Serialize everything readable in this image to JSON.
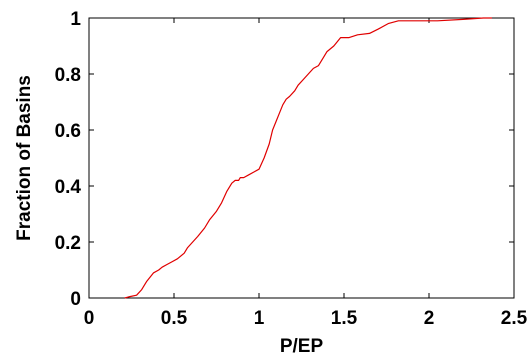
{
  "chart_data": {
    "type": "line",
    "title": "",
    "xlabel": "P/EP",
    "ylabel": "Fraction of Basins",
    "xlim": [
      0,
      2.5
    ],
    "ylim": [
      0,
      1
    ],
    "x_ticks": [
      0,
      0.5,
      1,
      1.5,
      2,
      2.5
    ],
    "x_tick_labels": [
      "0",
      "0.5",
      "1",
      "1.5",
      "2",
      "2.5"
    ],
    "y_ticks": [
      0,
      0.2,
      0.4,
      0.6,
      0.8,
      1
    ],
    "y_tick_labels": [
      "0",
      "0.2",
      "0.4",
      "0.6",
      "0.8",
      "1"
    ],
    "grid": false,
    "legend": "none",
    "series": [
      {
        "color": "#e00000",
        "x": [
          0.21,
          0.24,
          0.28,
          0.31,
          0.34,
          0.38,
          0.41,
          0.43,
          0.46,
          0.49,
          0.52,
          0.56,
          0.58,
          0.61,
          0.64,
          0.68,
          0.71,
          0.75,
          0.78,
          0.81,
          0.84,
          0.86,
          0.88,
          0.89,
          0.91,
          0.94,
          0.97,
          1.0,
          1.03,
          1.06,
          1.08,
          1.1,
          1.12,
          1.14,
          1.16,
          1.18,
          1.21,
          1.23,
          1.26,
          1.29,
          1.32,
          1.35,
          1.38,
          1.4,
          1.44,
          1.48,
          1.53,
          1.58,
          1.65,
          1.7,
          1.76,
          1.82,
          1.88,
          2.05,
          2.2,
          2.32,
          2.37
        ],
        "y": [
          0.0,
          0.005,
          0.01,
          0.03,
          0.06,
          0.09,
          0.1,
          0.11,
          0.12,
          0.13,
          0.14,
          0.16,
          0.18,
          0.2,
          0.22,
          0.25,
          0.28,
          0.31,
          0.34,
          0.38,
          0.41,
          0.42,
          0.42,
          0.43,
          0.43,
          0.44,
          0.45,
          0.46,
          0.5,
          0.55,
          0.6,
          0.63,
          0.66,
          0.69,
          0.71,
          0.72,
          0.74,
          0.76,
          0.78,
          0.8,
          0.82,
          0.83,
          0.86,
          0.88,
          0.9,
          0.93,
          0.93,
          0.94,
          0.945,
          0.96,
          0.98,
          0.99,
          0.99,
          0.99,
          0.995,
          1.0,
          1.0
        ]
      }
    ]
  }
}
